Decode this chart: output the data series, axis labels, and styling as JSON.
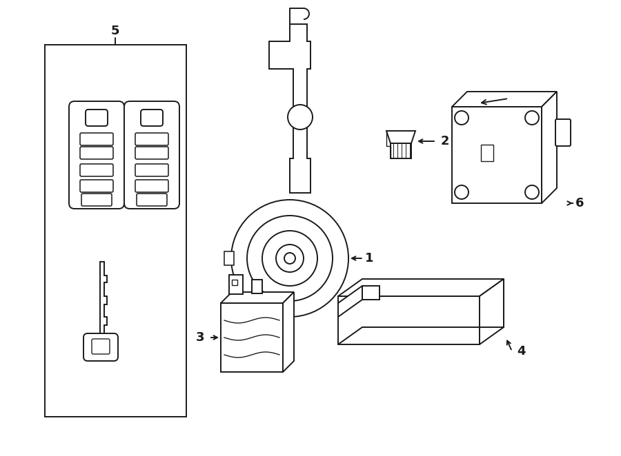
{
  "bg_color": "#ffffff",
  "line_color": "#1a1a1a",
  "lw": 1.4,
  "fig_w": 9.0,
  "fig_h": 6.62,
  "dpi": 100,
  "xlim": [
    0,
    900
  ],
  "ylim": [
    0,
    662
  ]
}
